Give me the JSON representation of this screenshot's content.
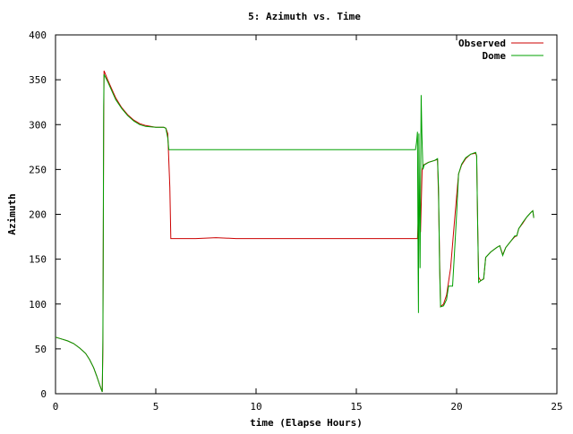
{
  "chart_data": {
    "type": "line",
    "title": "5: Azimuth vs. Time",
    "xlabel": "time (Elapse Hours)",
    "ylabel": "Azimuth",
    "xlim": [
      0,
      25
    ],
    "ylim": [
      0,
      400
    ],
    "xticks": [
      "0",
      "5",
      "10",
      "15",
      "20",
      "25"
    ],
    "yticks": [
      "0",
      "50",
      "100",
      "150",
      "200",
      "250",
      "300",
      "350",
      "400"
    ],
    "grid": false,
    "legend_position": "top-right",
    "series": [
      {
        "name": "Observed",
        "color": "#cc0000",
        "points": [
          [
            0.0,
            63
          ],
          [
            0.3,
            61
          ],
          [
            0.6,
            59
          ],
          [
            0.9,
            56
          ],
          [
            1.2,
            51
          ],
          [
            1.5,
            45
          ],
          [
            1.7,
            38
          ],
          [
            1.9,
            29
          ],
          [
            2.05,
            20
          ],
          [
            2.2,
            10
          ],
          [
            2.33,
            2
          ],
          [
            2.36,
            50
          ],
          [
            2.38,
            150
          ],
          [
            2.4,
            300
          ],
          [
            2.42,
            360
          ],
          [
            2.6,
            350
          ],
          [
            2.8,
            340
          ],
          [
            3.0,
            330
          ],
          [
            3.3,
            319
          ],
          [
            3.6,
            311
          ],
          [
            3.9,
            305
          ],
          [
            4.2,
            301
          ],
          [
            4.5,
            299
          ],
          [
            5.0,
            297
          ],
          [
            5.4,
            297
          ],
          [
            5.5,
            296
          ],
          [
            5.6,
            290
          ],
          [
            5.7,
            230
          ],
          [
            5.75,
            173
          ],
          [
            7.0,
            173
          ],
          [
            8.0,
            174
          ],
          [
            9.0,
            173
          ],
          [
            10.0,
            173
          ],
          [
            12.0,
            173
          ],
          [
            14.0,
            173
          ],
          [
            16.0,
            173
          ],
          [
            17.5,
            173
          ],
          [
            18.05,
            173
          ],
          [
            18.1,
            200
          ],
          [
            18.15,
            210
          ],
          [
            18.2,
            180
          ],
          [
            18.28,
            250
          ],
          [
            18.35,
            255
          ],
          [
            18.6,
            258
          ],
          [
            18.9,
            260
          ],
          [
            19.05,
            261
          ],
          [
            19.1,
            220
          ],
          [
            19.15,
            150
          ],
          [
            19.2,
            97
          ],
          [
            19.35,
            100
          ],
          [
            19.5,
            110
          ],
          [
            19.7,
            140
          ],
          [
            19.85,
            180
          ],
          [
            20.0,
            220
          ],
          [
            20.1,
            245
          ],
          [
            20.25,
            255
          ],
          [
            20.45,
            262
          ],
          [
            20.7,
            267
          ],
          [
            20.95,
            268
          ],
          [
            21.0,
            265
          ],
          [
            21.05,
            190
          ],
          [
            21.1,
            130
          ],
          [
            21.2,
            126
          ],
          [
            21.35,
            128
          ],
          [
            21.45,
            152
          ],
          [
            21.7,
            158
          ],
          [
            22.0,
            163
          ],
          [
            22.15,
            165
          ],
          [
            22.3,
            155
          ],
          [
            22.45,
            163
          ],
          [
            22.7,
            170
          ],
          [
            22.9,
            175
          ],
          [
            23.0,
            176
          ],
          [
            23.1,
            184
          ],
          [
            23.3,
            190
          ],
          [
            23.5,
            197
          ],
          [
            23.7,
            202
          ],
          [
            23.8,
            204
          ],
          [
            23.85,
            196
          ]
        ]
      },
      {
        "name": "Dome",
        "color": "#00a000",
        "points": [
          [
            0.0,
            63
          ],
          [
            0.3,
            61
          ],
          [
            0.6,
            59
          ],
          [
            0.9,
            56
          ],
          [
            1.2,
            51
          ],
          [
            1.5,
            45
          ],
          [
            1.7,
            38
          ],
          [
            1.9,
            29
          ],
          [
            2.05,
            20
          ],
          [
            2.2,
            10
          ],
          [
            2.33,
            2
          ],
          [
            2.36,
            60
          ],
          [
            2.38,
            170
          ],
          [
            2.4,
            320
          ],
          [
            2.42,
            356
          ],
          [
            2.6,
            348
          ],
          [
            2.8,
            338
          ],
          [
            3.0,
            328
          ],
          [
            3.3,
            318
          ],
          [
            3.6,
            310
          ],
          [
            3.9,
            304
          ],
          [
            4.2,
            300
          ],
          [
            4.5,
            298
          ],
          [
            5.0,
            297
          ],
          [
            5.4,
            297
          ],
          [
            5.5,
            296
          ],
          [
            5.6,
            285
          ],
          [
            5.65,
            272
          ],
          [
            7.0,
            272
          ],
          [
            8.0,
            272
          ],
          [
            10.0,
            272
          ],
          [
            12.0,
            272
          ],
          [
            14.0,
            272
          ],
          [
            16.0,
            272
          ],
          [
            17.5,
            272
          ],
          [
            17.95,
            272
          ],
          [
            18.0,
            280
          ],
          [
            18.05,
            292
          ],
          [
            18.08,
            140
          ],
          [
            18.1,
            90
          ],
          [
            18.12,
            290
          ],
          [
            18.18,
            140
          ],
          [
            18.23,
            333
          ],
          [
            18.27,
            290
          ],
          [
            18.32,
            250
          ],
          [
            18.38,
            255
          ],
          [
            18.6,
            258
          ],
          [
            18.9,
            260
          ],
          [
            19.05,
            262
          ],
          [
            19.1,
            230
          ],
          [
            19.15,
            140
          ],
          [
            19.2,
            97
          ],
          [
            19.35,
            98
          ],
          [
            19.5,
            105
          ],
          [
            19.6,
            120
          ],
          [
            19.8,
            120
          ],
          [
            19.9,
            160
          ],
          [
            20.0,
            200
          ],
          [
            20.1,
            245
          ],
          [
            20.25,
            256
          ],
          [
            20.45,
            263
          ],
          [
            20.7,
            267
          ],
          [
            20.95,
            269
          ],
          [
            21.0,
            265
          ],
          [
            21.05,
            190
          ],
          [
            21.1,
            124
          ],
          [
            21.2,
            126
          ],
          [
            21.35,
            128
          ],
          [
            21.45,
            152
          ],
          [
            21.7,
            158
          ],
          [
            22.0,
            163
          ],
          [
            22.15,
            165
          ],
          [
            22.3,
            154
          ],
          [
            22.45,
            163
          ],
          [
            22.7,
            170
          ],
          [
            22.9,
            176
          ],
          [
            23.0,
            176
          ],
          [
            23.1,
            184
          ],
          [
            23.3,
            191
          ],
          [
            23.5,
            197
          ],
          [
            23.7,
            202
          ],
          [
            23.8,
            204
          ],
          [
            23.85,
            196
          ]
        ]
      }
    ]
  }
}
